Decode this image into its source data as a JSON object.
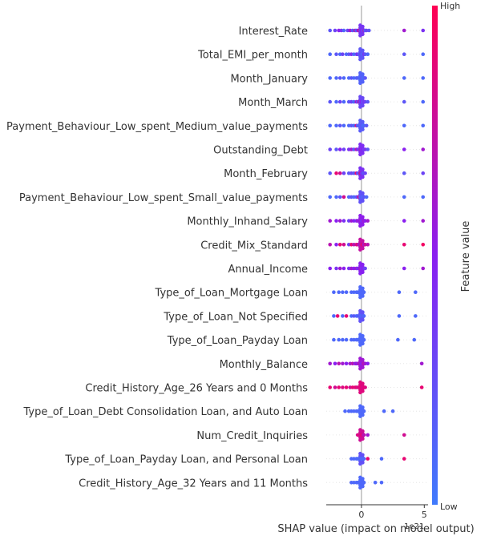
{
  "chart_data": {
    "type": "scatter",
    "subtype": "shap-beeswarm-summary",
    "xlabel": "SHAP value (impact on model output)",
    "x_offset_label": "1e21",
    "xlim": [
      -2.8,
      5.3
    ],
    "x_ticks": [
      0,
      5
    ],
    "color_scale": {
      "label": "Feature value",
      "high_label": "High",
      "low_label": "Low",
      "high_color": "#ff0052",
      "low_color": "#3f7afc"
    },
    "features": [
      {
        "name": "Interest_Rate",
        "values": [
          -2.5,
          -2.1,
          -1.8,
          -1.6,
          -1.4,
          -1.1,
          -0.9,
          -0.7,
          -0.5,
          -0.4,
          -0.3,
          -0.2,
          -0.1,
          0.0,
          0.1,
          0.2,
          0.3,
          0.4,
          0.6,
          3.4,
          4.9
        ],
        "colors": [
          0.2,
          0.3,
          0.5,
          0.4,
          0.1,
          0.3,
          0.6,
          0.2,
          0.7,
          0.1,
          0.4,
          0.8,
          0.3,
          0.5,
          0.2,
          0.6,
          0.1,
          0.3,
          0.2,
          0.6,
          0.4
        ]
      },
      {
        "name": "Total_EMI_per_month",
        "values": [
          -2.5,
          -2.0,
          -1.7,
          -1.5,
          -1.2,
          -1.0,
          -0.8,
          -0.6,
          -0.4,
          -0.3,
          -0.2,
          -0.1,
          0.0,
          0.1,
          0.2,
          0.3,
          0.5,
          3.4,
          4.9
        ],
        "colors": [
          0.1,
          0.2,
          0.1,
          0.3,
          0.1,
          0.2,
          0.4,
          0.1,
          0.2,
          0.5,
          0.1,
          0.3,
          0.2,
          0.1,
          0.4,
          0.2,
          0.1,
          0.2,
          0.1
        ]
      },
      {
        "name": "Month_January",
        "values": [
          -2.5,
          -2.0,
          -1.7,
          -1.4,
          -1.0,
          -0.8,
          -0.6,
          -0.4,
          -0.3,
          -0.2,
          -0.1,
          0.0,
          0.1,
          0.2,
          0.3,
          3.4,
          4.9
        ],
        "colors": [
          0.1,
          0.1,
          0.2,
          0.1,
          0.1,
          0.2,
          0.1,
          0.1,
          0.2,
          0.1,
          0.1,
          0.2,
          0.1,
          0.1,
          0.2,
          0.1,
          0.1
        ]
      },
      {
        "name": "Month_March",
        "values": [
          -2.5,
          -2.0,
          -1.7,
          -1.4,
          -1.0,
          -0.8,
          -0.6,
          -0.4,
          -0.3,
          -0.2,
          -0.1,
          0.0,
          0.1,
          0.2,
          0.3,
          0.5,
          3.4,
          4.9
        ],
        "colors": [
          0.2,
          0.1,
          0.3,
          0.1,
          0.2,
          0.3,
          0.1,
          0.6,
          0.2,
          0.7,
          0.3,
          0.5,
          0.2,
          0.4,
          0.3,
          0.2,
          0.2,
          0.1
        ]
      },
      {
        "name": "Payment_Behaviour_Low_spent_Medium_value_payments",
        "values": [
          -2.5,
          -2.0,
          -1.7,
          -1.4,
          -1.0,
          -0.8,
          -0.6,
          -0.4,
          -0.3,
          -0.2,
          -0.1,
          0.0,
          0.1,
          0.2,
          0.4,
          3.4,
          4.9
        ],
        "colors": [
          0.1,
          0.1,
          0.2,
          0.1,
          0.1,
          0.2,
          0.1,
          0.8,
          0.1,
          0.2,
          0.1,
          0.2,
          0.1,
          0.1,
          0.2,
          0.1,
          0.1
        ]
      },
      {
        "name": "Outstanding_Debt",
        "values": [
          -2.5,
          -2.0,
          -1.7,
          -1.4,
          -1.0,
          -0.8,
          -0.6,
          -0.4,
          -0.3,
          -0.2,
          -0.1,
          0.0,
          0.1,
          0.2,
          0.3,
          0.5,
          3.4,
          4.9
        ],
        "colors": [
          0.3,
          0.2,
          0.5,
          0.3,
          0.4,
          0.6,
          0.2,
          0.7,
          0.5,
          0.3,
          0.6,
          0.4,
          0.5,
          0.3,
          0.4,
          0.2,
          0.5,
          0.6
        ]
      },
      {
        "name": "Month_February",
        "values": [
          -2.5,
          -2.0,
          -1.7,
          -1.4,
          -1.0,
          -0.8,
          -0.6,
          -0.4,
          -0.3,
          -0.2,
          -0.1,
          0.0,
          0.1,
          0.2,
          0.3,
          3.4,
          4.9
        ],
        "colors": [
          0.2,
          0.9,
          0.8,
          0.3,
          0.2,
          0.3,
          0.2,
          0.9,
          0.3,
          0.2,
          0.8,
          0.4,
          0.3,
          0.2,
          0.3,
          0.2,
          0.3
        ]
      },
      {
        "name": "Payment_Behaviour_Low_spent_Small_value_payments",
        "values": [
          -2.5,
          -2.0,
          -1.7,
          -1.4,
          -1.0,
          -0.8,
          -0.6,
          -0.4,
          -0.3,
          -0.2,
          -0.1,
          0.0,
          0.1,
          0.2,
          0.4,
          3.4,
          4.9
        ],
        "colors": [
          0.1,
          0.1,
          0.2,
          0.8,
          0.1,
          0.2,
          0.1,
          0.2,
          0.3,
          0.8,
          0.1,
          0.2,
          0.1,
          0.2,
          0.1,
          0.1,
          0.1
        ]
      },
      {
        "name": "Monthly_Inhand_Salary",
        "values": [
          -2.5,
          -2.0,
          -1.7,
          -1.4,
          -1.0,
          -0.8,
          -0.6,
          -0.4,
          -0.3,
          -0.2,
          -0.1,
          0.0,
          0.1,
          0.2,
          0.3,
          0.5,
          3.4,
          4.9
        ],
        "colors": [
          0.6,
          0.5,
          0.6,
          0.4,
          0.3,
          0.6,
          0.5,
          0.4,
          0.6,
          0.5,
          0.6,
          0.4,
          0.5,
          0.6,
          0.5,
          0.6,
          0.5,
          0.6
        ]
      },
      {
        "name": "Credit_Mix_Standard",
        "values": [
          -2.5,
          -2.0,
          -1.7,
          -1.4,
          -1.0,
          -0.8,
          -0.6,
          -0.4,
          -0.3,
          -0.2,
          -0.1,
          0.0,
          0.1,
          0.2,
          0.3,
          0.5,
          3.4,
          4.9
        ],
        "colors": [
          0.7,
          0.5,
          0.9,
          0.8,
          0.3,
          0.9,
          0.7,
          0.8,
          0.9,
          0.6,
          0.7,
          0.8,
          0.9,
          0.6,
          0.8,
          0.7,
          0.9,
          0.95
        ]
      },
      {
        "name": "Annual_Income",
        "values": [
          -2.5,
          -2.0,
          -1.7,
          -1.4,
          -1.0,
          -0.8,
          -0.6,
          -0.4,
          -0.3,
          -0.2,
          -0.1,
          0.0,
          0.1,
          0.2,
          0.3,
          3.4,
          4.9
        ],
        "colors": [
          0.5,
          0.4,
          0.6,
          0.5,
          0.4,
          0.6,
          0.5,
          0.6,
          0.4,
          0.5,
          0.6,
          0.4,
          0.5,
          0.4,
          0.3,
          0.5,
          0.6
        ]
      },
      {
        "name": "Type_of_Loan_Mortgage Loan",
        "values": [
          -2.2,
          -1.8,
          -1.5,
          -1.2,
          -0.8,
          -0.6,
          -0.4,
          -0.3,
          -0.2,
          -0.1,
          0.0,
          0.1,
          0.2,
          3.0,
          4.3
        ],
        "colors": [
          0.1,
          0.1,
          0.1,
          0.1,
          0.1,
          0.1,
          0.1,
          0.1,
          0.1,
          0.1,
          0.1,
          0.1,
          0.1,
          0.1,
          0.1
        ]
      },
      {
        "name": "Type_of_Loan_Not Specified",
        "values": [
          -2.2,
          -1.9,
          -1.5,
          -1.2,
          -0.8,
          -0.6,
          -0.4,
          -0.3,
          -0.2,
          -0.1,
          0.0,
          0.1,
          0.2,
          3.0,
          4.3
        ],
        "colors": [
          0.1,
          0.9,
          0.1,
          0.9,
          0.1,
          0.2,
          0.1,
          0.1,
          0.2,
          0.1,
          0.1,
          0.2,
          0.1,
          0.1,
          0.1
        ]
      },
      {
        "name": "Type_of_Loan_Payday Loan",
        "values": [
          -2.2,
          -1.8,
          -1.5,
          -1.2,
          -0.8,
          -0.6,
          -0.4,
          -0.3,
          -0.2,
          -0.1,
          0.0,
          0.1,
          0.2,
          2.9,
          4.2
        ],
        "colors": [
          0.1,
          0.1,
          0.1,
          0.1,
          0.1,
          0.1,
          0.1,
          0.1,
          0.1,
          0.1,
          0.1,
          0.1,
          0.1,
          0.1,
          0.1
        ]
      },
      {
        "name": "Monthly_Balance",
        "values": [
          -2.5,
          -2.1,
          -1.8,
          -1.5,
          -1.2,
          -0.9,
          -0.7,
          -0.5,
          -0.4,
          -0.3,
          -0.2,
          -0.1,
          0.0,
          0.1,
          0.2,
          0.3,
          0.5,
          4.8
        ],
        "colors": [
          0.6,
          0.5,
          0.7,
          0.6,
          0.5,
          0.6,
          0.7,
          0.5,
          0.6,
          0.5,
          0.7,
          0.6,
          0.5,
          0.6,
          0.7,
          0.6,
          0.5,
          0.6
        ]
      },
      {
        "name": "Credit_History_Age_26 Years and 0 Months",
        "values": [
          -2.5,
          -2.1,
          -1.8,
          -1.5,
          -1.2,
          -0.9,
          -0.7,
          -0.5,
          -0.4,
          -0.3,
          -0.2,
          -0.1,
          0.0,
          0.1,
          0.2,
          0.3,
          4.8
        ],
        "colors": [
          0.9,
          0.8,
          0.9,
          0.85,
          0.9,
          0.8,
          0.9,
          0.85,
          0.9,
          0.8,
          0.9,
          0.85,
          0.9,
          0.8,
          0.9,
          0.85,
          0.9
        ]
      },
      {
        "name": "Type_of_Loan_Debt Consolidation Loan, and Auto Loan",
        "values": [
          -1.3,
          -1.0,
          -0.8,
          -0.6,
          -0.4,
          -0.3,
          -0.2,
          -0.1,
          0.0,
          0.1,
          0.2,
          1.8,
          2.5
        ],
        "colors": [
          0.1,
          0.1,
          0.1,
          0.1,
          0.1,
          0.1,
          0.1,
          0.1,
          0.1,
          0.1,
          0.1,
          0.1,
          0.1
        ]
      },
      {
        "name": "Num_Credit_Inquiries",
        "values": [
          -0.3,
          -0.2,
          -0.1,
          0.0,
          0.1,
          0.2,
          0.5,
          3.4
        ],
        "colors": [
          0.8,
          0.9,
          0.8,
          0.9,
          0.8,
          0.7,
          0.6,
          0.8
        ]
      },
      {
        "name": "Type_of_Loan_Payday Loan, and Personal Loan",
        "values": [
          -0.8,
          -0.6,
          -0.4,
          -0.3,
          -0.2,
          -0.1,
          0.0,
          0.1,
          0.2,
          0.5,
          1.6,
          3.4
        ],
        "colors": [
          0.1,
          0.1,
          0.1,
          0.1,
          0.1,
          0.1,
          0.1,
          0.1,
          0.1,
          0.9,
          0.1,
          0.9
        ]
      },
      {
        "name": "Credit_History_Age_32 Years and 11 Months",
        "values": [
          -0.8,
          -0.6,
          -0.4,
          -0.3,
          -0.2,
          -0.1,
          0.0,
          0.1,
          0.2,
          1.1,
          1.6
        ],
        "colors": [
          0.1,
          0.1,
          0.1,
          0.1,
          0.1,
          0.1,
          0.1,
          0.1,
          0.1,
          0.1,
          0.1
        ]
      }
    ]
  }
}
